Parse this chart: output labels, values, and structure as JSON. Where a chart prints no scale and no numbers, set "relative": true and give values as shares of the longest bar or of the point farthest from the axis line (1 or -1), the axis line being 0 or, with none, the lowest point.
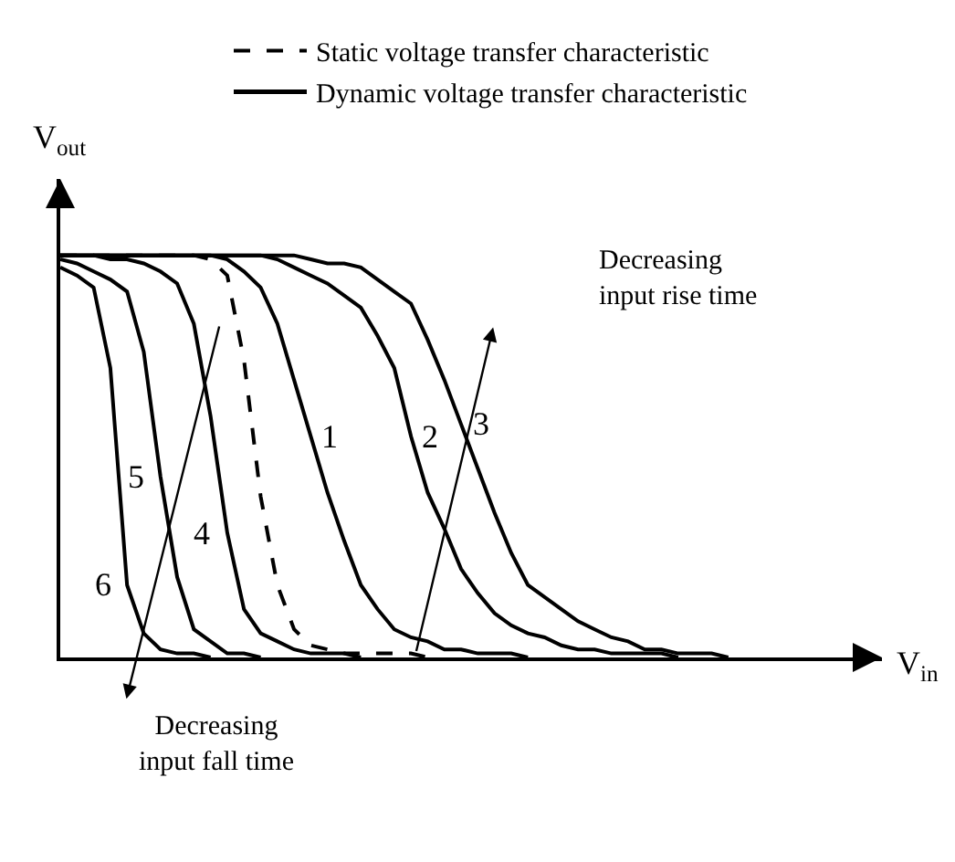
{
  "chart_data": {
    "type": "line",
    "relative": true,
    "xlabel": "V$_{in}$",
    "ylabel": "V$_{out}$",
    "legend": "top",
    "marker": "none",
    "line_style": "solid",
    "grid": false,
    "annotations": [
      "Dynamic voltage transfer characteristic",
      "Decreasing\ninput rise time",
      "Decreasing\ninput fall time"
    ],
    "categories": [
      null,
      null,
      null,
      null,
      null,
      null,
      null,
      null,
      null,
      null,
      null,
      null,
      null,
      null,
      null,
      null,
      null,
      null,
      null,
      null,
      null,
      null,
      null,
      null,
      null,
      null,
      null,
      null,
      null,
      null,
      null,
      null,
      null,
      null,
      null,
      null,
      null,
      null,
      null,
      null,
      null
    ],
    "series": [
      {
        "name": "Static voltage transfer characteristic",
        "color": "#000000",
        "line_style": "dashed",
        "values": [
          1,
          1,
          1,
          1,
          1,
          1,
          1,
          1,
          1,
          0.99,
          0.95,
          0.74,
          0.4,
          0.18,
          0.07,
          0.03,
          0.02,
          0.01,
          0.01,
          0.01,
          0.01,
          0.01,
          0,
          null,
          null,
          null,
          null,
          null,
          null,
          null,
          null,
          null,
          null,
          null,
          null,
          null,
          null,
          null,
          null,
          null,
          null
        ]
      },
      {
        "name": "1",
        "color": "#000000",
        "values": [
          1,
          1,
          1,
          1,
          1,
          1,
          1,
          1,
          1,
          1,
          0.99,
          0.96,
          0.92,
          0.83,
          0.69,
          0.55,
          0.41,
          0.29,
          0.18,
          0.12,
          0.07,
          0.05,
          0.04,
          0.02,
          0.02,
          0.01,
          0.01,
          0.01,
          0,
          null,
          null,
          null,
          null,
          null,
          null,
          null,
          null,
          null,
          null,
          null,
          null
        ]
      },
      {
        "name": "2",
        "color": "#000000",
        "values": [
          1,
          1,
          1,
          1,
          1,
          1,
          1,
          1,
          1,
          1,
          1,
          1,
          1,
          0.99,
          0.97,
          0.95,
          0.93,
          0.9,
          0.87,
          0.8,
          0.72,
          0.55,
          0.41,
          0.32,
          0.22,
          0.16,
          0.11,
          0.08,
          0.06,
          0.05,
          0.03,
          0.02,
          0.02,
          0.01,
          0.01,
          0.01,
          0.01,
          0,
          null,
          null,
          null
        ]
      },
      {
        "name": "3",
        "color": "#000000",
        "values": [
          1,
          1,
          1,
          1,
          1,
          1,
          1,
          1,
          1,
          1,
          1,
          1,
          1,
          1,
          1,
          0.99,
          0.98,
          0.98,
          0.97,
          0.94,
          0.91,
          0.88,
          0.79,
          0.69,
          0.58,
          0.47,
          0.36,
          0.26,
          0.18,
          0.15,
          0.12,
          0.09,
          0.07,
          0.05,
          0.04,
          0.02,
          0.02,
          0.01,
          0.01,
          0.01,
          0
        ]
      },
      {
        "name": "4",
        "color": "#000000",
        "values": [
          1,
          1,
          1,
          0.99,
          0.99,
          0.98,
          0.96,
          0.93,
          0.83,
          0.6,
          0.31,
          0.12,
          0.06,
          0.04,
          0.02,
          0.01,
          0.01,
          0.01,
          0,
          null,
          null,
          null,
          null,
          null,
          null,
          null,
          null,
          null,
          null,
          null,
          null,
          null,
          null,
          null,
          null,
          null,
          null,
          null,
          null,
          null,
          null
        ]
      },
      {
        "name": "5",
        "color": "#000000",
        "values": [
          0.99,
          0.98,
          0.96,
          0.94,
          0.91,
          0.76,
          0.45,
          0.2,
          0.07,
          0.04,
          0.01,
          0.01,
          0,
          null,
          null,
          null,
          null,
          null,
          null,
          null,
          null,
          null,
          null,
          null,
          null,
          null,
          null,
          null,
          null,
          null,
          null,
          null,
          null,
          null,
          null,
          null,
          null,
          null,
          null,
          null,
          null
        ]
      },
      {
        "name": "6",
        "color": "#000000",
        "values": [
          0.97,
          0.95,
          0.92,
          0.72,
          0.18,
          0.06,
          0.02,
          0.01,
          0.01,
          0,
          null,
          null,
          null,
          null,
          null,
          null,
          null,
          null,
          null,
          null,
          null,
          null,
          null,
          null,
          null,
          null,
          null,
          null,
          null,
          null,
          null,
          null,
          null,
          null,
          null,
          null,
          null,
          null,
          null,
          null,
          null
        ]
      }
    ]
  }
}
